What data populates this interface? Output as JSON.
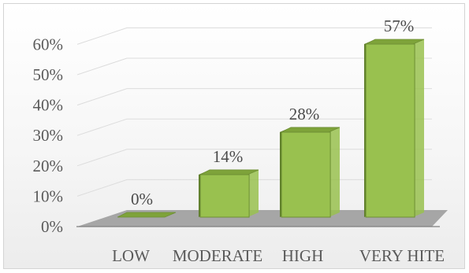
{
  "chart_data": {
    "type": "bar",
    "style": "3d-column",
    "categories": [
      "LOW",
      "MODERATE",
      "HIGH",
      "VERY HITE"
    ],
    "values": [
      0,
      14,
      28,
      57
    ],
    "data_labels": [
      "0%",
      "14%",
      "28%",
      "57%"
    ],
    "y_ticks": [
      "0%",
      "10%",
      "20%",
      "30%",
      "40%",
      "50%",
      "60%"
    ],
    "ylim": [
      0,
      60
    ],
    "grid": true,
    "legend": "none",
    "colors": {
      "bar_front": "#99c14f",
      "bar_side": "#5f7e2c",
      "bar_top": "#7ea33a",
      "floor": "#a6a6a6",
      "grid": "#dcdcdc"
    }
  }
}
